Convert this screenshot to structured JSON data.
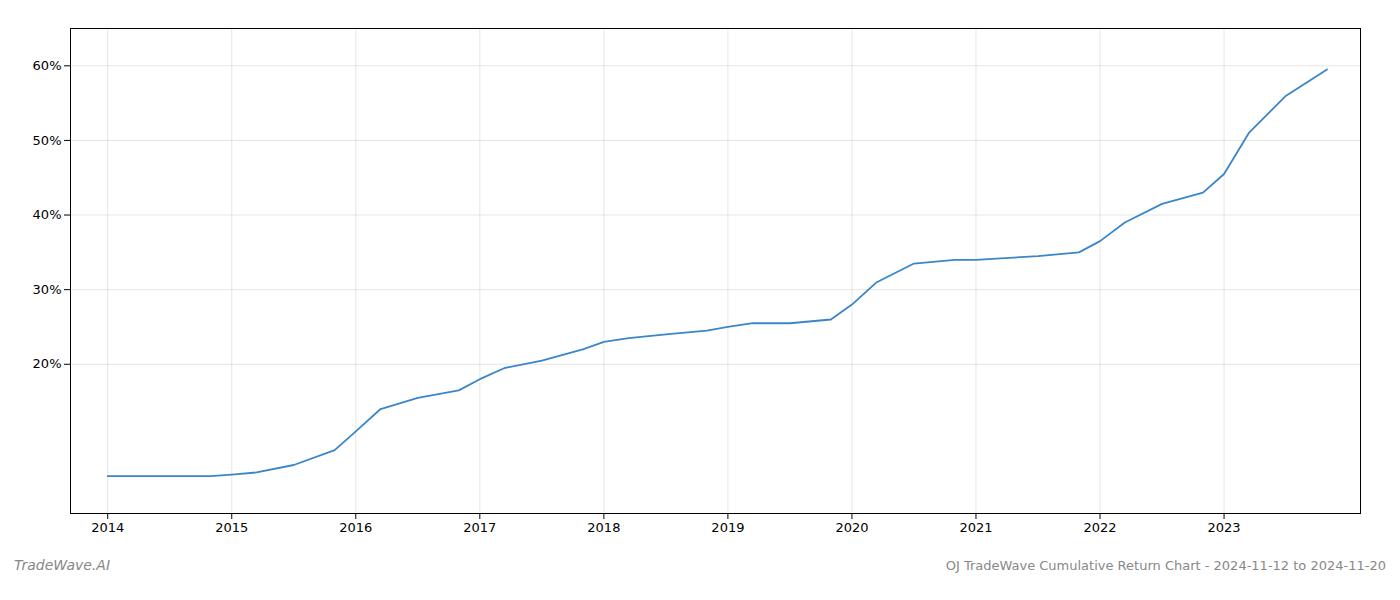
{
  "chart_data": {
    "type": "line",
    "title": "OJ TradeWave Cumulative Return Chart - 2024-11-12 to 2024-11-20",
    "annotations": [
      "TradeWave.AI"
    ],
    "x": [
      2014.0,
      2014.2,
      2014.5,
      2014.83,
      2015.0,
      2015.2,
      2015.5,
      2015.83,
      2016.0,
      2016.2,
      2016.5,
      2016.83,
      2017.0,
      2017.2,
      2017.5,
      2017.83,
      2018.0,
      2018.2,
      2018.5,
      2018.83,
      2019.0,
      2019.2,
      2019.5,
      2019.83,
      2020.0,
      2020.2,
      2020.5,
      2020.83,
      2021.0,
      2021.2,
      2021.5,
      2021.83,
      2022.0,
      2022.2,
      2022.5,
      2022.83,
      2023.0,
      2023.2,
      2023.5,
      2023.83
    ],
    "values": [
      5.0,
      5.0,
      5.0,
      5.0,
      5.2,
      5.5,
      6.5,
      8.5,
      11.0,
      14.0,
      15.5,
      16.5,
      18.0,
      19.5,
      20.5,
      22.0,
      23.0,
      23.5,
      24.0,
      24.5,
      25.0,
      25.5,
      25.5,
      26.0,
      28.0,
      31.0,
      33.5,
      34.0,
      34.0,
      34.2,
      34.5,
      35.0,
      36.5,
      39.0,
      41.5,
      43.0,
      45.5,
      51.0,
      56.0,
      59.5
    ],
    "color": "#3a86c8",
    "xlim": [
      2013.7,
      2024.1
    ],
    "ylim": [
      0,
      65
    ],
    "xticks": [
      2014,
      2015,
      2016,
      2017,
      2018,
      2019,
      2020,
      2021,
      2022,
      2023
    ],
    "yticks": [
      {
        "value": 20,
        "label": "20%"
      },
      {
        "value": 30,
        "label": "30%"
      },
      {
        "value": 40,
        "label": "40%"
      },
      {
        "value": 50,
        "label": "50%"
      },
      {
        "value": 60,
        "label": "60%"
      }
    ],
    "grid": true
  }
}
